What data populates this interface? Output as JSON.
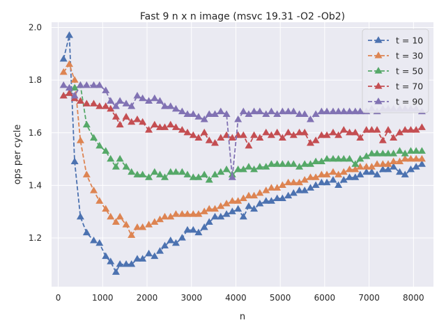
{
  "chart_data": {
    "type": "line",
    "title": "Fast 9 n x n image (msvc 19.31 -O2 -Ob2)",
    "xlabel": "n",
    "ylabel": "ops per cycle",
    "xlim": [
      -150,
      8450
    ],
    "ylim": [
      1.015,
      2.02
    ],
    "xticks": [
      0,
      1000,
      2000,
      3000,
      4000,
      5000,
      6000,
      7000,
      8000
    ],
    "yticks": [
      1.2,
      1.4,
      1.6,
      1.8,
      2.0
    ],
    "ytick_labels": [
      "1.2",
      "1.4",
      "1.6",
      "1.8",
      "2.0"
    ],
    "grid": true,
    "legend_position": "top-right",
    "background": "#eaeaf2",
    "x": [
      120,
      250,
      370,
      500,
      640,
      800,
      930,
      1070,
      1180,
      1300,
      1390,
      1530,
      1650,
      1780,
      1900,
      2040,
      2170,
      2290,
      2400,
      2530,
      2650,
      2790,
      2910,
      3040,
      3160,
      3290,
      3400,
      3530,
      3660,
      3790,
      3920,
      4050,
      4170,
      4290,
      4410,
      4540,
      4680,
      4800,
      4930,
      5050,
      5180,
      5300,
      5430,
      5550,
      5680,
      5800,
      5930,
      6050,
      6190,
      6310,
      6430,
      6560,
      6690,
      6800,
      6940,
      7060,
      7180,
      7310,
      7430,
      7550,
      7690,
      7810,
      7940,
      8060,
      8190
    ],
    "series": [
      {
        "name": "t = 10",
        "color": "#4c72b0",
        "values": [
          1.88,
          1.97,
          1.49,
          1.28,
          1.22,
          1.19,
          1.18,
          1.13,
          1.11,
          1.07,
          1.1,
          1.1,
          1.1,
          1.12,
          1.12,
          1.14,
          1.13,
          1.15,
          1.17,
          1.19,
          1.18,
          1.2,
          1.23,
          1.23,
          1.22,
          1.24,
          1.26,
          1.28,
          1.28,
          1.29,
          1.3,
          1.31,
          1.28,
          1.32,
          1.31,
          1.33,
          1.34,
          1.34,
          1.35,
          1.35,
          1.36,
          1.37,
          1.38,
          1.38,
          1.39,
          1.4,
          1.41,
          1.41,
          1.42,
          1.4,
          1.42,
          1.43,
          1.43,
          1.44,
          1.45,
          1.45,
          1.44,
          1.46,
          1.46,
          1.47,
          1.45,
          1.44,
          1.46,
          1.47,
          1.48
        ]
      },
      {
        "name": "t = 30",
        "color": "#dd8452",
        "values": [
          1.83,
          1.86,
          1.8,
          1.57,
          1.44,
          1.38,
          1.34,
          1.31,
          1.28,
          1.26,
          1.28,
          1.25,
          1.21,
          1.24,
          1.24,
          1.25,
          1.26,
          1.27,
          1.28,
          1.28,
          1.29,
          1.29,
          1.29,
          1.29,
          1.29,
          1.3,
          1.31,
          1.31,
          1.32,
          1.33,
          1.34,
          1.34,
          1.35,
          1.36,
          1.36,
          1.37,
          1.38,
          1.39,
          1.39,
          1.4,
          1.41,
          1.41,
          1.41,
          1.42,
          1.43,
          1.43,
          1.44,
          1.44,
          1.45,
          1.44,
          1.45,
          1.46,
          1.46,
          1.47,
          1.47,
          1.47,
          1.48,
          1.48,
          1.48,
          1.49,
          1.49,
          1.5,
          1.5,
          1.5,
          1.5
        ]
      },
      {
        "name": "t = 50",
        "color": "#55a868",
        "values": [
          1.74,
          1.75,
          1.77,
          1.78,
          1.63,
          1.58,
          1.55,
          1.53,
          1.5,
          1.47,
          1.5,
          1.47,
          1.45,
          1.44,
          1.44,
          1.43,
          1.45,
          1.44,
          1.43,
          1.45,
          1.45,
          1.45,
          1.44,
          1.43,
          1.43,
          1.44,
          1.42,
          1.44,
          1.45,
          1.46,
          1.44,
          1.46,
          1.46,
          1.47,
          1.46,
          1.47,
          1.47,
          1.48,
          1.48,
          1.48,
          1.48,
          1.48,
          1.47,
          1.48,
          1.48,
          1.49,
          1.49,
          1.5,
          1.5,
          1.5,
          1.5,
          1.5,
          1.48,
          1.5,
          1.51,
          1.52,
          1.52,
          1.52,
          1.52,
          1.52,
          1.53,
          1.52,
          1.53,
          1.53,
          1.53
        ]
      },
      {
        "name": "t = 70",
        "color": "#c44e52",
        "values": [
          1.74,
          1.75,
          1.73,
          1.72,
          1.71,
          1.71,
          1.7,
          1.7,
          1.69,
          1.66,
          1.63,
          1.66,
          1.64,
          1.65,
          1.64,
          1.61,
          1.63,
          1.62,
          1.62,
          1.63,
          1.62,
          1.61,
          1.6,
          1.59,
          1.58,
          1.6,
          1.57,
          1.56,
          1.58,
          1.59,
          1.58,
          1.59,
          1.59,
          1.55,
          1.59,
          1.58,
          1.6,
          1.59,
          1.6,
          1.58,
          1.6,
          1.59,
          1.6,
          1.6,
          1.56,
          1.57,
          1.59,
          1.59,
          1.6,
          1.59,
          1.61,
          1.6,
          1.6,
          1.58,
          1.61,
          1.61,
          1.61,
          1.57,
          1.61,
          1.58,
          1.6,
          1.61,
          1.61,
          1.61,
          1.62
        ]
      },
      {
        "name": "t = 90",
        "color": "#8172b3",
        "values": [
          1.78,
          1.77,
          1.74,
          1.78,
          1.78,
          1.78,
          1.78,
          1.76,
          1.72,
          1.7,
          1.72,
          1.71,
          1.7,
          1.74,
          1.73,
          1.72,
          1.73,
          1.72,
          1.7,
          1.7,
          1.69,
          1.68,
          1.67,
          1.67,
          1.66,
          1.65,
          1.67,
          1.67,
          1.68,
          1.67,
          1.43,
          1.65,
          1.68,
          1.67,
          1.68,
          1.68,
          1.67,
          1.68,
          1.67,
          1.68,
          1.68,
          1.68,
          1.67,
          1.67,
          1.65,
          1.67,
          1.68,
          1.68,
          1.68,
          1.68,
          1.68,
          1.68,
          1.68,
          1.68,
          1.68,
          1.69,
          1.68,
          1.69,
          1.69,
          1.69,
          1.69,
          1.69,
          1.69,
          1.69,
          1.68
        ]
      }
    ]
  }
}
